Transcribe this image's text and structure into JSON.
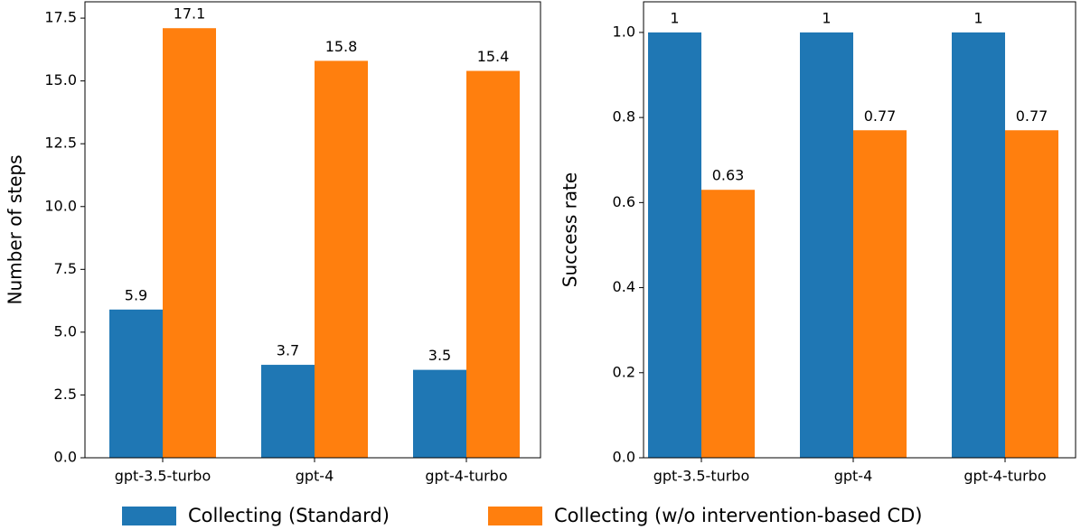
{
  "chart_data": [
    {
      "type": "bar",
      "ylabel": "Number of steps",
      "categories": [
        "gpt-3.5-turbo",
        "gpt-4",
        "gpt-4-turbo"
      ],
      "series": [
        {
          "name": "Collecting (Standard)",
          "color": "#1f77b4",
          "values": [
            5.9,
            3.7,
            3.5
          ]
        },
        {
          "name": "Collecting (w/o intervention-based CD)",
          "color": "#ff7f0e",
          "values": [
            17.1,
            15.8,
            15.4
          ]
        }
      ],
      "ylim": [
        0,
        18.15
      ],
      "yticks": [
        {
          "value": 0,
          "label": "0.0"
        },
        2.5,
        {
          "value": 5,
          "label": "5.0"
        },
        7.5,
        {
          "value": 10,
          "label": "10.0"
        },
        12.5,
        {
          "value": 15,
          "label": "15.0"
        },
        17.5
      ]
    },
    {
      "type": "bar",
      "ylabel": "Success rate",
      "categories": [
        "gpt-3.5-turbo",
        "gpt-4",
        "gpt-4-turbo"
      ],
      "series": [
        {
          "color": "#1f77b4",
          "values": [
            1,
            1,
            1
          ]
        },
        {
          "color": "#ff7f0e",
          "values": [
            0.63,
            0.77,
            0.77
          ]
        }
      ],
      "ylim": [
        0,
        1.072
      ],
      "yticks": [
        {
          "value": 0,
          "label": "0.0"
        },
        0.2,
        0.4,
        0.6,
        0.8,
        {
          "value": 1,
          "label": "1.0"
        }
      ]
    }
  ]
}
